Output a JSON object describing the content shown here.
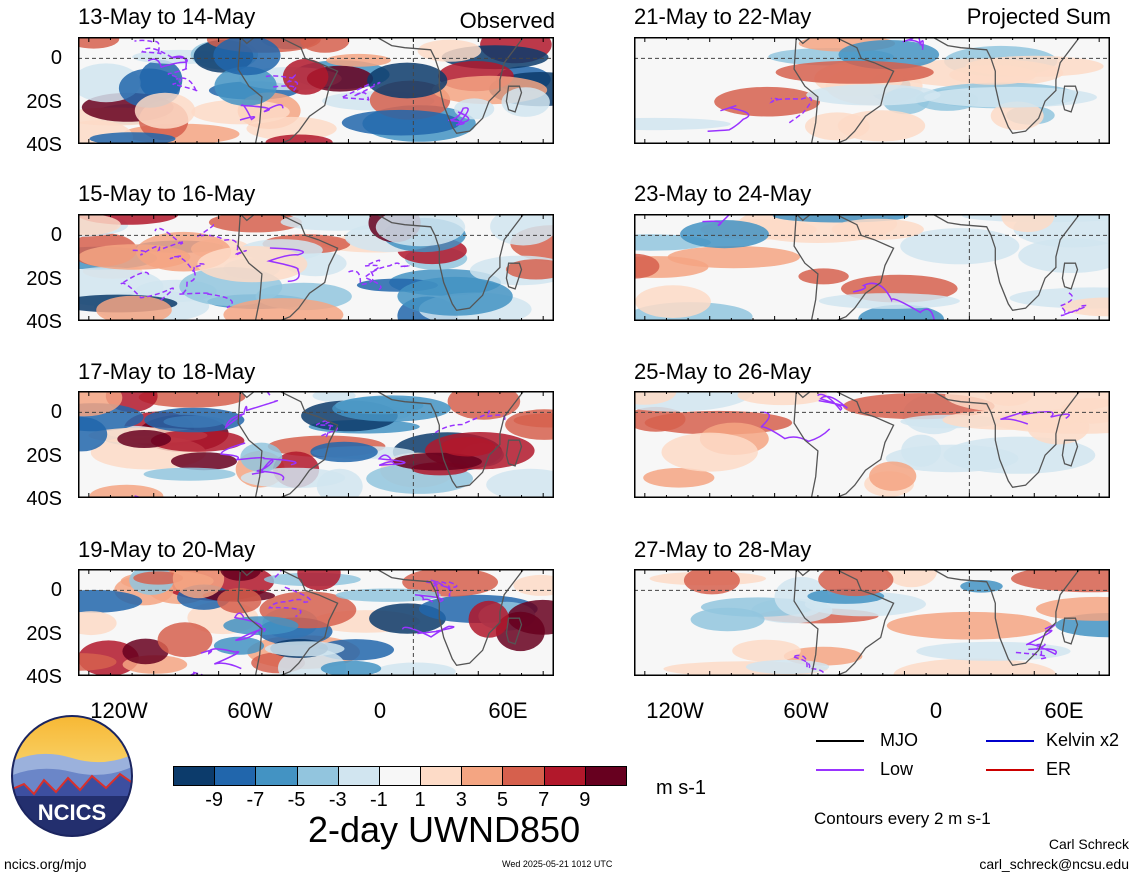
{
  "columns": [
    {
      "corner_label": "Observed",
      "panels": [
        {
          "title": "13-May to 14-May"
        },
        {
          "title": "15-May to 16-May"
        },
        {
          "title": "17-May to 18-May"
        },
        {
          "title": "19-May to 20-May"
        }
      ]
    },
    {
      "corner_label": "Projected Sum",
      "panels": [
        {
          "title": "21-May to 22-May"
        },
        {
          "title": "23-May to 24-May"
        },
        {
          "title": "25-May to 26-May"
        },
        {
          "title": "27-May to 28-May"
        }
      ]
    }
  ],
  "axes": {
    "y_ticks": [
      "0",
      "20S",
      "40S"
    ],
    "x_ticks": [
      "120W",
      "60W",
      "0",
      "60E"
    ]
  },
  "colorbar": {
    "labels": [
      "-9",
      "-7",
      "-5",
      "-3",
      "-1",
      "1",
      "3",
      "5",
      "7",
      "9"
    ],
    "colors": [
      "#0c3b6b",
      "#2166ac",
      "#4393c3",
      "#92c5de",
      "#d1e5f0",
      "#f7f7f7",
      "#fddbc7",
      "#f4a582",
      "#d6604d",
      "#b2182b",
      "#67001f"
    ],
    "units": "m s-1",
    "title": "2-day UWND850"
  },
  "legend": {
    "items": [
      {
        "label": "MJO",
        "color": "#000000"
      },
      {
        "label": "Kelvin x2",
        "color": "#0000cc"
      },
      {
        "label": "Low",
        "color": "#9933ff"
      },
      {
        "label": "ER",
        "color": "#cc0000"
      }
    ],
    "contour_note": "Contours every 2 m s-1"
  },
  "logo": {
    "text": "NCICS"
  },
  "footer": {
    "url": "ncics.org/mjo",
    "timestamp": "Wed 2025-05-21 1012 UTC",
    "author": "Carl Schreck",
    "email": "carl_schreck@ncsu.edu"
  }
}
